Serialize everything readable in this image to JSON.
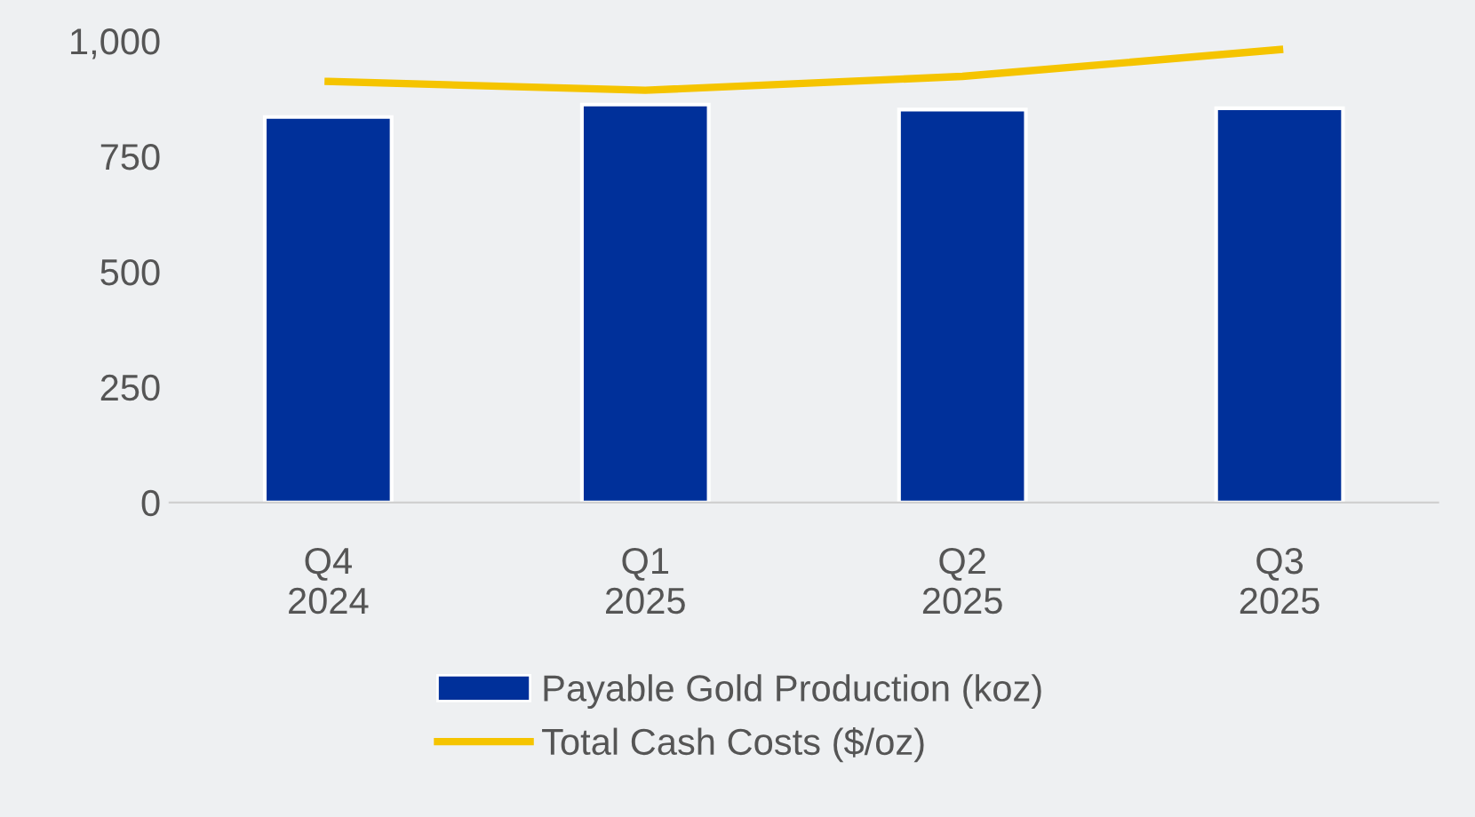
{
  "chart_data": {
    "type": "bar",
    "categories": [
      "Q4\n2024",
      "Q1\n2025",
      "Q2\n2025",
      "Q3\n2025"
    ],
    "series": [
      {
        "name": "Payable Gold Production (koz)",
        "color": "#00309a",
        "values": [
          835,
          862,
          851,
          854
        ]
      },
      {
        "name": "Total Cash Costs ($/oz)",
        "type": "line",
        "color": "#f5c400",
        "values": [
          912,
          893,
          923,
          981
        ]
      }
    ],
    "ylim": [
      0,
      1000
    ],
    "yticks": [
      0,
      250,
      500,
      750,
      {
        "value": 1000,
        "label": "1,000"
      }
    ],
    "grid": false,
    "legend": "bottom",
    "marker": "none",
    "line_style": "solid"
  }
}
